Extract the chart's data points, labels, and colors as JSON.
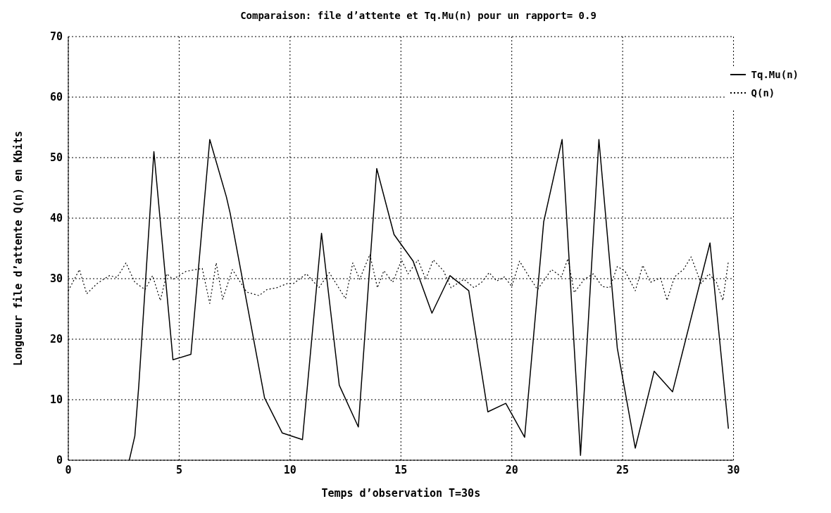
{
  "chart_data": {
    "type": "line",
    "title": "Comparaison: file d’attente et Tq.Mu(n) pour un rapport= 0.9",
    "xlabel": "Temps d’observation T=30s",
    "ylabel": "Longueur file d’attente Q(n) en Kbits",
    "xlim": [
      0,
      30
    ],
    "xticks": [
      0,
      5,
      10,
      15,
      20,
      25,
      30
    ],
    "ylim": [
      0,
      70
    ],
    "yticks": [
      0,
      10,
      20,
      30,
      40,
      50,
      60,
      70
    ],
    "grid": true,
    "legend": "top right",
    "marker": "none",
    "series": [
      {
        "name": "Tq.Mu(n)",
        "color": "#000000",
        "line_style": "solid",
        "x": [
          2.75,
          3.0,
          3.18,
          3.86,
          4.72,
          5.53,
          6.38,
          7.13,
          7.3,
          8.85,
          9.65,
          10.56,
          11.42,
          12.22,
          13.08,
          13.91,
          14.69,
          15.55,
          16.4,
          17.21,
          18.06,
          18.92,
          19.73,
          20.58,
          21.44,
          22.27,
          23.1,
          23.93,
          24.76,
          25.57,
          26.42,
          27.25,
          28.94,
          29.77
        ],
        "values": [
          0,
          4,
          12.4,
          51,
          16.6,
          17.5,
          53,
          43.5,
          40.8,
          10.3,
          4.5,
          3.4,
          37.5,
          12.4,
          5.5,
          48.2,
          37.3,
          32.9,
          24.3,
          30.5,
          28,
          8,
          9.4,
          3.8,
          39.4,
          53,
          0.8,
          53,
          18.5,
          2,
          14.7,
          11.3,
          35.9,
          5.2
        ]
      },
      {
        "name": "Q(n)",
        "color": "#000000",
        "line_style": "dotted",
        "x": [
          0,
          0.5,
          0.83,
          1.3,
          1.85,
          2.2,
          2.6,
          3.0,
          3.46,
          3.8,
          4.15,
          4.44,
          4.72,
          5.3,
          6.04,
          6.38,
          6.67,
          6.96,
          7.4,
          8.04,
          8.6,
          8.96,
          9.4,
          9.88,
          10.16,
          10.74,
          11.3,
          11.77,
          12.5,
          12.83,
          13.14,
          13.6,
          13.94,
          14.23,
          14.63,
          15.03,
          15.32,
          15.77,
          16.12,
          16.46,
          16.92,
          17.26,
          17.84,
          18.3,
          18.64,
          18.98,
          19.32,
          19.67,
          20.0,
          20.35,
          20.7,
          21.16,
          21.79,
          22.24,
          22.53,
          22.82,
          23.27,
          23.68,
          24.08,
          24.42,
          24.76,
          25.1,
          25.57,
          25.91,
          26.25,
          26.71,
          27.0,
          27.34,
          27.74,
          28.09,
          28.54,
          28.89,
          29.23,
          29.52,
          29.77
        ],
        "values": [
          28,
          31.5,
          27.5,
          29.2,
          30.5,
          30.2,
          32.6,
          29.4,
          28.2,
          30.5,
          26.4,
          30.8,
          29.9,
          31.2,
          31.7,
          25.9,
          32.6,
          26.6,
          31.5,
          27.8,
          27.2,
          28.2,
          28.5,
          29.2,
          29.2,
          30.8,
          28.5,
          31,
          26.7,
          32.6,
          29.9,
          34,
          28.5,
          31.3,
          29.4,
          33.1,
          30.8,
          33.1,
          29.9,
          33.1,
          31.3,
          28.5,
          29.9,
          28.5,
          29.4,
          31,
          29.6,
          30.3,
          28.7,
          32.9,
          30.8,
          28.2,
          31.5,
          30.3,
          33.3,
          27.7,
          29.9,
          30.8,
          28.7,
          28.5,
          32,
          31.3,
          28,
          32.2,
          29.4,
          30.1,
          26.4,
          30.3,
          31.5,
          33.6,
          29.2,
          30.8,
          29.4,
          26.4,
          32.9
        ]
      }
    ]
  }
}
